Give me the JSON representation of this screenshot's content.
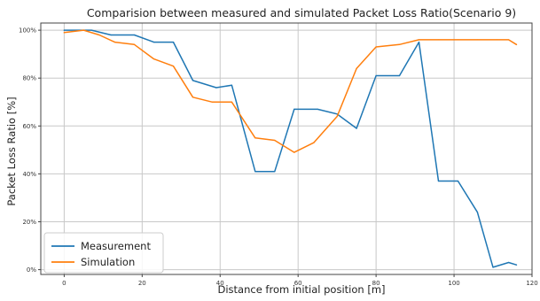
{
  "chart_data": {
    "type": "line",
    "title": "Comparision between measured and simulated Packet Loss Ratio(Scenario 9)",
    "xlabel": "Distance from initial position [m]",
    "ylabel": "Packet Loss Ratio [%]",
    "xlim": [
      -6,
      120
    ],
    "ylim": [
      -2,
      103
    ],
    "x_ticks": [
      0,
      20,
      40,
      60,
      80,
      100,
      120
    ],
    "x_tick_labels": [
      "0",
      "20",
      "40",
      "60",
      "80",
      "100",
      "120"
    ],
    "y_ticks": [
      0,
      20,
      40,
      60,
      80,
      100
    ],
    "y_tick_labels": [
      "0%",
      "20%",
      "40%",
      "60%",
      "80%",
      "100%"
    ],
    "grid": true,
    "legend_position": "lower-left",
    "series": [
      {
        "name": "Measurement",
        "color": "#1f77b4",
        "x": [
          0,
          3,
          7,
          12,
          18,
          23,
          28,
          33,
          39,
          43,
          49,
          54,
          59,
          65,
          70,
          75,
          80,
          86,
          91,
          96,
          101,
          106,
          110,
          114,
          116
        ],
        "y": [
          100,
          100,
          100,
          98,
          98,
          95,
          95,
          79,
          76,
          77,
          41,
          41,
          67,
          67,
          65,
          59,
          81,
          81,
          95,
          37,
          37,
          24,
          1,
          3,
          2
        ]
      },
      {
        "name": "Simulation",
        "color": "#ff7f0e",
        "x": [
          0,
          5,
          9,
          13,
          18,
          23,
          28,
          33,
          38,
          43,
          49,
          54,
          59,
          64,
          70,
          75,
          80,
          86,
          91,
          96,
          101,
          106,
          111,
          114,
          116
        ],
        "y": [
          99,
          100,
          98,
          95,
          94,
          88,
          85,
          72,
          70,
          70,
          55,
          54,
          49,
          53,
          64,
          84,
          93,
          94,
          96,
          96,
          96,
          96,
          96,
          96,
          94
        ]
      }
    ]
  }
}
